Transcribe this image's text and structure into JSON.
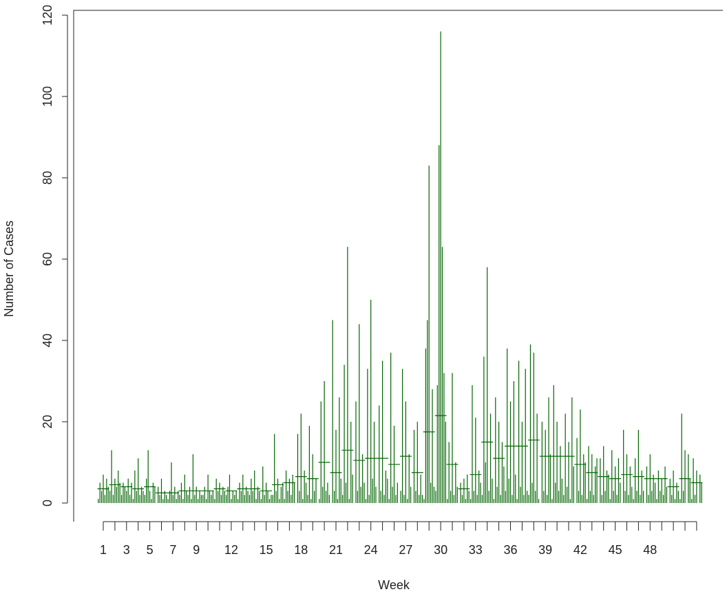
{
  "chart_data": {
    "type": "spike",
    "xlabel": "Week",
    "ylabel": "Number of Cases",
    "categories": [
      "1",
      null,
      "3",
      null,
      "5",
      null,
      "7",
      null,
      "9",
      null,
      null,
      "12",
      null,
      null,
      "15",
      null,
      null,
      "18",
      null,
      null,
      "21",
      null,
      null,
      "24",
      null,
      null,
      "27",
      null,
      null,
      "30",
      null,
      null,
      "33",
      null,
      null,
      "36",
      null,
      null,
      "39",
      null,
      null,
      "42",
      null,
      null,
      "45",
      null,
      null,
      "48",
      null,
      null,
      null,
      null
    ],
    "ylim": [
      0,
      120
    ],
    "yticks": [
      0,
      20,
      40,
      60,
      80,
      100,
      120
    ],
    "color": "#006400",
    "weekly_means": [
      3.5,
      4.5,
      4,
      3.5,
      4,
      2.5,
      2.5,
      3,
      3,
      3,
      3.5,
      3,
      3.5,
      3.5,
      3,
      4.5,
      5,
      6.5,
      6,
      10,
      7.5,
      13,
      10.5,
      11,
      11,
      9.5,
      11.5,
      7.5,
      17.5,
      21.5,
      9.5,
      3.5,
      7,
      15,
      11,
      14,
      14,
      15.5,
      11.5,
      11.5,
      11.5,
      9.5,
      7.5,
      6.5,
      6,
      7,
      6.5,
      6,
      6,
      4,
      6,
      5
    ],
    "daily": [
      [
        1,
        5,
        3,
        7,
        2,
        6,
        4
      ],
      [
        3,
        13,
        2,
        6,
        4,
        8,
        5
      ],
      [
        2,
        5,
        4,
        3,
        6,
        2,
        5
      ],
      [
        1,
        8,
        3,
        11,
        2,
        4,
        3
      ],
      [
        2,
        6,
        13,
        3,
        1,
        5,
        4
      ],
      [
        0,
        4,
        2,
        6,
        1,
        3,
        2
      ],
      [
        1,
        3,
        10,
        2,
        4,
        1,
        3
      ],
      [
        2,
        5,
        1,
        7,
        3,
        2,
        4
      ],
      [
        1,
        12,
        2,
        4,
        1,
        3,
        2
      ],
      [
        2,
        4,
        1,
        7,
        3,
        2,
        3
      ],
      [
        1,
        6,
        3,
        5,
        2,
        4,
        3
      ],
      [
        2,
        4,
        7,
        1,
        3,
        2,
        3
      ],
      [
        1,
        5,
        3,
        7,
        2,
        4,
        3
      ],
      [
        2,
        6,
        3,
        8,
        1,
        4,
        3
      ],
      [
        1,
        9,
        2,
        5,
        3,
        1,
        2
      ],
      [
        2,
        17,
        3,
        6,
        1,
        4,
        5
      ],
      [
        1,
        8,
        3,
        6,
        2,
        7,
        5
      ],
      [
        0,
        17,
        3,
        22,
        1,
        8,
        5
      ],
      [
        2,
        19,
        1,
        12,
        3,
        6,
        0
      ],
      [
        1,
        25,
        4,
        30,
        3,
        5,
        2
      ],
      [
        0,
        45,
        3,
        18,
        1,
        26,
        6
      ],
      [
        2,
        34,
        5,
        63,
        1,
        20,
        7
      ],
      [
        0,
        25,
        3,
        44,
        4,
        12,
        5
      ],
      [
        1,
        33,
        2,
        50,
        6,
        20,
        4
      ],
      [
        0,
        24,
        3,
        35,
        2,
        8,
        6
      ],
      [
        1,
        37,
        4,
        19,
        2,
        5,
        0
      ],
      [
        3,
        33,
        2,
        25,
        1,
        12,
        4
      ],
      [
        0,
        18,
        3,
        20,
        2,
        7,
        2
      ],
      [
        1,
        38,
        45,
        83,
        5,
        28,
        4
      ],
      [
        3,
        29,
        88,
        116,
        63,
        32,
        20
      ],
      [
        1,
        15,
        3,
        32,
        2,
        10,
        4
      ],
      [
        0,
        5,
        2,
        6,
        1,
        7,
        3
      ],
      [
        1,
        29,
        3,
        21,
        2,
        8,
        5
      ],
      [
        2,
        36,
        10,
        58,
        3,
        22,
        6
      ],
      [
        1,
        26,
        4,
        20,
        2,
        15,
        9
      ],
      [
        3,
        38,
        6,
        25,
        2,
        30,
        7
      ],
      [
        1,
        35,
        4,
        20,
        2,
        33,
        3
      ],
      [
        2,
        39,
        5,
        37,
        3,
        22,
        1
      ],
      [
        0,
        20,
        3,
        18,
        2,
        26,
        12
      ],
      [
        1,
        29,
        5,
        20,
        3,
        14,
        6
      ],
      [
        2,
        22,
        4,
        15,
        1,
        26,
        9
      ],
      [
        0,
        16,
        3,
        23,
        2,
        12,
        10
      ],
      [
        1,
        14,
        3,
        12,
        2,
        9,
        11
      ],
      [
        0,
        11,
        2,
        14,
        3,
        8,
        7
      ],
      [
        1,
        13,
        3,
        9,
        2,
        11,
        5
      ],
      [
        0,
        18,
        3,
        12,
        2,
        9,
        4
      ],
      [
        1,
        11,
        3,
        18,
        2,
        8,
        3
      ],
      [
        0,
        9,
        2,
        12,
        3,
        7,
        5
      ],
      [
        1,
        8,
        3,
        6,
        2,
        9,
        4
      ],
      [
        0,
        6,
        2,
        8,
        1,
        5,
        3
      ],
      [
        1,
        22,
        3,
        13,
        0,
        12,
        6
      ],
      [
        1,
        11,
        2,
        8,
        0,
        7,
        5
      ]
    ]
  }
}
